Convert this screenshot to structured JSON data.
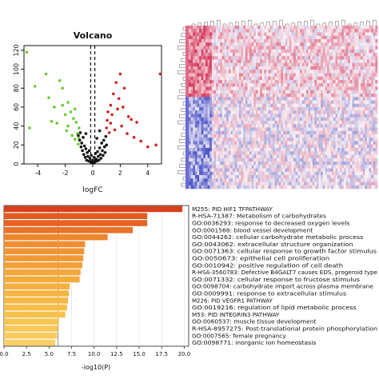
{
  "chart_data": [
    {
      "type": "scatter",
      "title": "Volcano",
      "xlabel": "logFC",
      "ylabel": "",
      "xlim": [
        -5,
        5
      ],
      "ylim": [
        0,
        125
      ],
      "x_ticks": [
        -4,
        -2,
        0,
        2,
        4
      ],
      "y_ticks": [
        0,
        20,
        40,
        60,
        80,
        100,
        120
      ],
      "thresholds": [
        -0.15,
        0.15
      ],
      "series": [
        {
          "color": "#66cc33",
          "points": [
            [
              -4.8,
              118
            ],
            [
              -4.6,
              38
            ],
            [
              -4.2,
              82
            ],
            [
              -3.4,
              95
            ],
            [
              -3.2,
              70
            ],
            [
              -3.0,
              45
            ],
            [
              -2.8,
              60
            ],
            [
              -2.6,
              43
            ],
            [
              -2.4,
              88
            ],
            [
              -2.2,
              80
            ],
            [
              -2.2,
              62
            ],
            [
              -2.0,
              52
            ],
            [
              -1.9,
              35
            ],
            [
              -1.8,
              65
            ],
            [
              -1.8,
              40
            ],
            [
              -1.6,
              55
            ],
            [
              -1.5,
              30
            ],
            [
              -1.4,
              48
            ],
            [
              -1.3,
              58
            ],
            [
              -1.3,
              26
            ],
            [
              -1.2,
              44
            ],
            [
              -1.1,
              32
            ],
            [
              -1.05,
              21
            ],
            [
              -1.0,
              38
            ],
            [
              -1.0,
              27
            ]
          ]
        },
        {
          "color": "#111111",
          "points": [
            [
              -1.05,
              30
            ],
            [
              -0.95,
              25
            ],
            [
              -0.9,
              33
            ],
            [
              -0.85,
              18
            ],
            [
              -0.8,
              22
            ],
            [
              -0.75,
              14
            ],
            [
              -0.7,
              28
            ],
            [
              -0.65,
              10
            ],
            [
              -0.6,
              19
            ],
            [
              -0.55,
              7
            ],
            [
              -0.5,
              16
            ],
            [
              -0.45,
              4
            ],
            [
              -0.4,
              12
            ],
            [
              -0.35,
              8
            ],
            [
              -0.3,
              3
            ],
            [
              -0.25,
              14
            ],
            [
              -0.2,
              6
            ],
            [
              -0.15,
              2
            ],
            [
              -0.1,
              9
            ],
            [
              -0.05,
              1
            ],
            [
              0.0,
              4
            ],
            [
              0.05,
              1
            ],
            [
              0.1,
              7
            ],
            [
              0.15,
              2
            ],
            [
              0.2,
              11
            ],
            [
              0.25,
              5
            ],
            [
              0.3,
              3
            ],
            [
              0.35,
              13
            ],
            [
              0.4,
              8
            ],
            [
              0.45,
              4
            ],
            [
              0.5,
              17
            ],
            [
              0.55,
              10
            ],
            [
              0.6,
              6
            ],
            [
              0.65,
              22
            ],
            [
              0.7,
              14
            ],
            [
              0.75,
              9
            ],
            [
              0.8,
              25
            ],
            [
              0.85,
              18
            ],
            [
              0.9,
              12
            ],
            [
              0.95,
              29
            ],
            [
              1.0,
              20
            ],
            [
              -0.5,
              32
            ],
            [
              0.5,
              35
            ],
            [
              0.3,
              27
            ]
          ]
        },
        {
          "color": "#cc2222",
          "points": [
            [
              1.0,
              38
            ],
            [
              1.05,
              46
            ],
            [
              1.1,
              55
            ],
            [
              1.2,
              33
            ],
            [
              1.3,
              62
            ],
            [
              1.3,
              43
            ],
            [
              1.4,
              52
            ],
            [
              1.5,
              74
            ],
            [
              1.6,
              36
            ],
            [
              1.7,
              86
            ],
            [
              1.8,
              58
            ],
            [
              1.9,
              69
            ],
            [
              2.0,
              95
            ],
            [
              2.1,
              40
            ],
            [
              2.2,
              60
            ],
            [
              2.3,
              80
            ],
            [
              2.5,
              32
            ],
            [
              2.6,
              50
            ],
            [
              2.8,
              47
            ],
            [
              3.0,
              28
            ],
            [
              3.2,
              44
            ],
            [
              3.5,
              24
            ],
            [
              4.0,
              18
            ],
            [
              4.6,
              20
            ],
            [
              4.9,
              95
            ]
          ]
        }
      ]
    },
    {
      "type": "heatmap",
      "rows": 48,
      "cols": 90,
      "colors": {
        "high": "#d63a5e",
        "mid": "#fbf2f5",
        "low": "#4a56c8"
      },
      "sidebar_colors": [
        "#6b6bd8",
        "#e06a8a"
      ]
    },
    {
      "type": "bar",
      "orientation": "horizontal",
      "xlabel": "-log10(P)",
      "xlim": [
        0,
        20.5
      ],
      "x_ticks": [
        0.0,
        2.5,
        5.0,
        7.5,
        10.0,
        12.5,
        15.0,
        17.5,
        20.0
      ],
      "x_tick_labels": [
        "0.0",
        "2.5",
        "5.0",
        "7.5",
        "10.0",
        "12.5",
        "15.0",
        "17.5",
        "20.0"
      ],
      "categories": [
        "M255: PID HIF1 TFPATHWAY",
        "R-HSA-71387: Metabolism of carbohydrates",
        "GO:0036293: response to decreased oxygen levels",
        "GO:0001568: blood vessel development",
        "GO:0044262: cellular carbohydrate metabolic process",
        "GO:0043062: extracellular structure organization",
        "GO:0071363: cellular response to growth factor stimulus",
        "GO:0050673: epithelial cell proliferation",
        "GO:0010942: positive regulation of cell death",
        "R-HSA-3560783: Defective B4GALT7 causes EDS, progeroid type",
        "GO:0071332: cellular response to fructose stimulus",
        "GO:0098704: carbohydrate import across plasma membrane",
        "GO:0009991: response to extracellular stimulus",
        "M226: PID VEGFR1 PATHWAY",
        "GO:0019216: regulation of lipid metabolic process",
        "M53: PID INTEGRIN3 PATHWAY",
        "GO:0060537: muscle tissue development",
        "R-HSA-8957275: Post-translational protein phosphorylation",
        "GO:0007565: female pregnancy",
        "GO:0098771: inorganic ion homeostasis"
      ],
      "values": [
        19.8,
        15.9,
        15.9,
        14.3,
        11.5,
        9.0,
        8.9,
        8.8,
        8.7,
        8.5,
        8.4,
        7.3,
        7.2,
        7.1,
        7.0,
        6.8,
        6.1,
        6.0,
        5.9,
        5.7
      ],
      "colors": [
        "#d8411a",
        "#e25b21",
        "#e66324",
        "#ea7327",
        "#ee862e",
        "#f08f31",
        "#f19533",
        "#f19a35",
        "#f3a137",
        "#f4a73a",
        "#f5ac3c",
        "#f5b03e",
        "#f6b441",
        "#f7b845",
        "#f7bd48",
        "#f8c04c",
        "#f8c452",
        "#f9c758",
        "#f9cb5e",
        "#facf66"
      ],
      "threshold": 6.0
    }
  ]
}
